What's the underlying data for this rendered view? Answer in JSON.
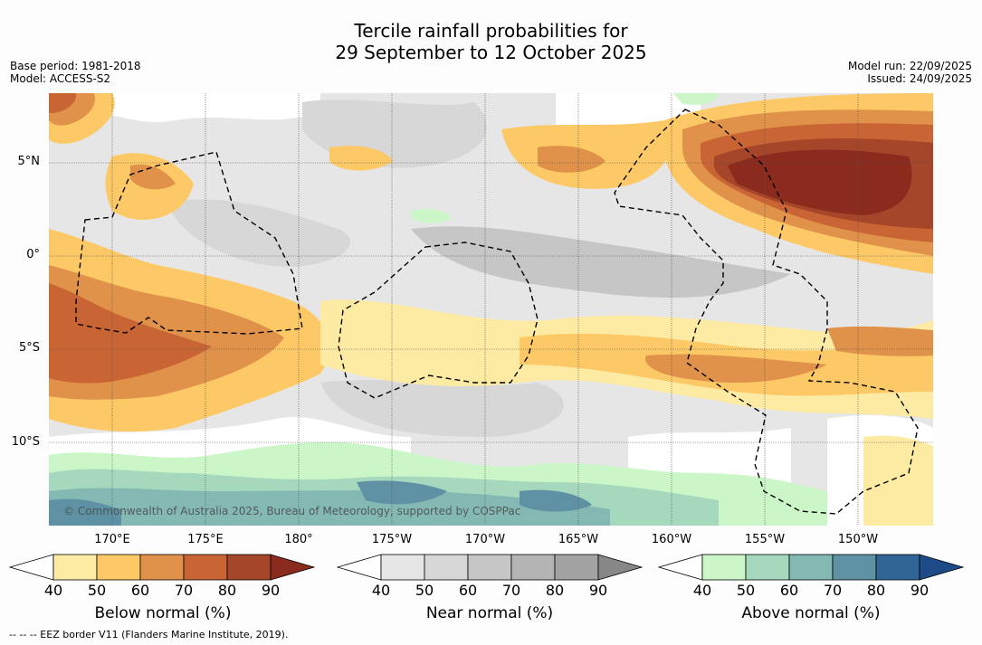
{
  "title_line1": "Tercile rainfall probabilities for",
  "title_line2": "29 September to 12 October 2025",
  "meta_left": {
    "base_period": "Base period: 1981-2018",
    "model": "Model: ACCESS-S2"
  },
  "meta_right": {
    "model_run": "Model run: 22/09/2025",
    "issued": "Issued: 24/09/2025"
  },
  "lat_labels": [
    "5°N",
    "0°",
    "5°S",
    "10°S"
  ],
  "lon_labels": [
    "170°E",
    "175°E",
    "180°",
    "175°W",
    "170°W",
    "165°W",
    "160°W",
    "155°W",
    "150°W"
  ],
  "copyright": "© Commonwealth of Australia 2025, Bureau of Meteorology, supported by COSPPac",
  "legend": {
    "below": {
      "label": "Below normal (%)",
      "ticks": [
        "40",
        "50",
        "60",
        "70",
        "80",
        "90"
      ],
      "colors": [
        "#ffffff",
        "#feeba3",
        "#fdc966",
        "#e0924a",
        "#c96535",
        "#a5452a",
        "#8a2b1e"
      ]
    },
    "near": {
      "label": "Near normal (%)",
      "ticks": [
        "40",
        "50",
        "60",
        "70",
        "80",
        "90"
      ],
      "colors": [
        "#ffffff",
        "#e6e6e6",
        "#d7d7d7",
        "#c6c6c6",
        "#b4b4b4",
        "#a3a3a3",
        "#878787"
      ]
    },
    "above": {
      "label": "Above normal (%)",
      "ticks": [
        "40",
        "50",
        "60",
        "70",
        "80",
        "90"
      ],
      "colors": [
        "#ffffff",
        "#cbf7c8",
        "#a6d8be",
        "#84b8b2",
        "#5e91a3",
        "#306595",
        "#1f4a88"
      ]
    }
  },
  "footnote": "--  --  -- EEZ border V11 (Flanders Marine Institute, 2019)."
}
